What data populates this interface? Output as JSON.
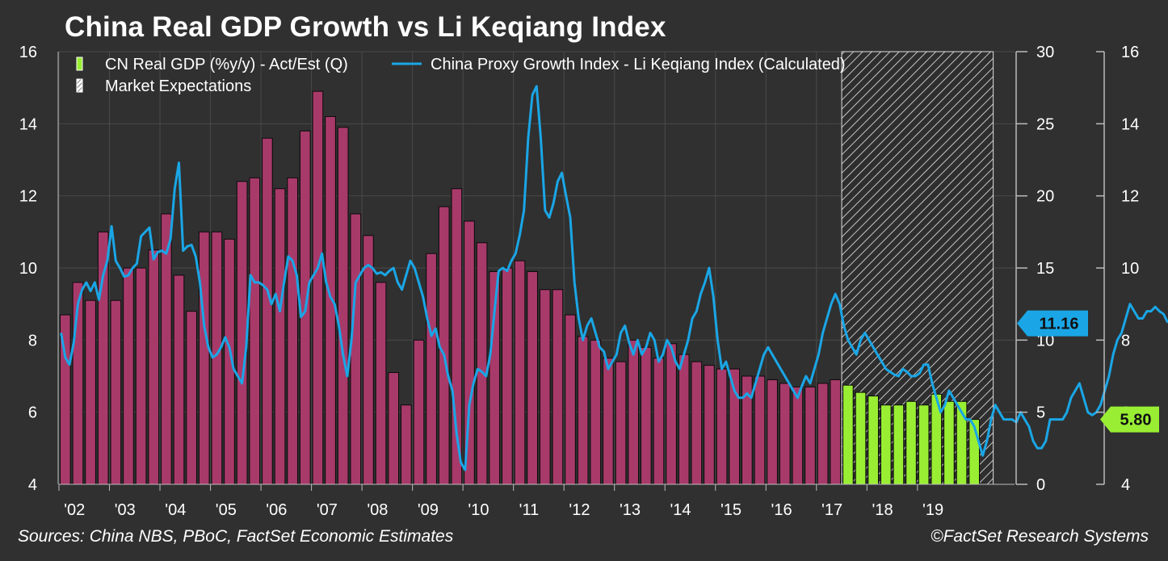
{
  "title": "China Real GDP Growth vs Li Keqiang Index",
  "footer": {
    "sources": "Sources: China NBS, PBoC, FactSet Economic Estimates",
    "copyright": "©FactSet Research Systems"
  },
  "colors": {
    "background": "#303030",
    "gdp_actual": "#a83a6a",
    "gdp_estimate": "#99ee33",
    "line": "#1aa6e6",
    "hatch": "#bbbbbb",
    "grid": "#4a4a4a"
  },
  "chart_data": {
    "type": "bar+line",
    "title": "China Real GDP Growth vs Li Keqiang Index",
    "xlabel": "",
    "x_tick_labels": [
      "'02",
      "'03",
      "'04",
      "'05",
      "'06",
      "'07",
      "'08",
      "'09",
      "'10",
      "'11",
      "'12",
      "'13",
      "'14",
      "'15",
      "'16",
      "'17",
      "'18",
      "'19"
    ],
    "left_axis": {
      "ylim": [
        4,
        16
      ],
      "ticks": [
        4,
        6,
        8,
        10,
        12,
        14,
        16
      ]
    },
    "right_axis_inner": {
      "ylim": [
        0,
        30
      ],
      "ticks": [
        0,
        5,
        10,
        15,
        20,
        25,
        30
      ]
    },
    "right_axis_outer": {
      "ylim": [
        4,
        16
      ],
      "ticks": [
        4,
        6,
        8,
        10,
        12,
        14,
        16
      ]
    },
    "legend": [
      {
        "label": "CN Real GDP (%y/y) - Act/Est (Q)",
        "kind": "bar"
      },
      {
        "label": "China Proxy Growth Index - Li Keqiang Index (Calculated)",
        "kind": "line"
      },
      {
        "label": "Market Expectations",
        "kind": "hatch"
      }
    ],
    "gdp_actual": {
      "name": "CN Real GDP (%y/y) - Act",
      "start_quarter": "2002Q1",
      "values": [
        8.7,
        9.6,
        9.1,
        11.0,
        9.1,
        10.0,
        10.0,
        10.5,
        11.5,
        9.8,
        8.8,
        11.0,
        11.0,
        10.8,
        12.4,
        12.5,
        13.6,
        12.2,
        12.5,
        13.8,
        14.9,
        14.2,
        13.9,
        11.5,
        10.9,
        9.6,
        7.1,
        6.2,
        8.0,
        10.4,
        11.7,
        12.2,
        11.3,
        10.7,
        9.9,
        10.0,
        10.2,
        9.9,
        9.4,
        9.4,
        8.7,
        8.1,
        8.0,
        7.5,
        7.4,
        8.0,
        7.8,
        7.5,
        7.9,
        7.6,
        7.4,
        7.3,
        7.2,
        7.2,
        7.0,
        7.0,
        6.9,
        6.8,
        6.7,
        6.7,
        6.8,
        6.9
      ]
    },
    "gdp_estimate": {
      "name": "CN Real GDP (%y/y) - Est",
      "start_quarter": "2017Q2",
      "values": [
        6.75,
        6.55,
        6.45,
        6.2,
        6.2,
        6.3,
        6.2,
        6.5,
        6.3,
        6.3,
        5.8
      ]
    },
    "market_expectations": {
      "from": "2017Q2",
      "to": "2019Q4"
    },
    "li_keqiang_index": {
      "name": "China Proxy Growth Index - Li Keqiang Index (Calculated)",
      "axis": "right_axis_inner",
      "start_month": "2002-01",
      "values": [
        10.5,
        8.8,
        8.3,
        9.8,
        12.5,
        13.5,
        14.0,
        13.4,
        14.0,
        12.8,
        14.5,
        15.5,
        17.9,
        15.5,
        15.0,
        14.4,
        14.5,
        15.0,
        15.3,
        17.2,
        17.5,
        17.8,
        15.6,
        16.1,
        16.2,
        16.0,
        17.0,
        20.5,
        22.3,
        16.2,
        16.5,
        16.6,
        15.8,
        14.0,
        11.0,
        9.5,
        8.8,
        9.0,
        9.5,
        10.2,
        9.5,
        8.0,
        7.5,
        7.0,
        9.5,
        14.5,
        14.0,
        14.0,
        13.8,
        13.5,
        12.5,
        13.2,
        12.0,
        14.0,
        15.8,
        15.5,
        14.5,
        11.6,
        12.0,
        14.0,
        14.5,
        15.0,
        16.0,
        14.0,
        13.0,
        12.5,
        11.0,
        9.0,
        7.5,
        10.0,
        14.0,
        14.5,
        15.0,
        15.2,
        15.0,
        14.6,
        14.7,
        14.5,
        14.8,
        15.0,
        14.0,
        13.5,
        14.5,
        15.5,
        15.0,
        14.0,
        13.0,
        11.5,
        10.3,
        10.8,
        9.5,
        9.0,
        7.5,
        6.5,
        3.5,
        1.5,
        1.0,
        5.5,
        7.0,
        8.0,
        7.8,
        7.5,
        9.0,
        12.0,
        14.8,
        15.0,
        14.8,
        15.5,
        16.0,
        17.3,
        19.0,
        24.0,
        27.0,
        27.6,
        24.0,
        19.0,
        18.5,
        19.5,
        21.0,
        21.6,
        20.0,
        18.5,
        14.0,
        11.5,
        10.0,
        11.0,
        11.5,
        10.5,
        9.5,
        9.2,
        8.0,
        8.5,
        9.0,
        10.5,
        11.0,
        9.8,
        9.0,
        10.0,
        9.0,
        9.5,
        10.5,
        10.0,
        8.5,
        9.0,
        10.0,
        9.5,
        8.5,
        8.0,
        9.0,
        10.0,
        11.5,
        12.0,
        13.2,
        14.0,
        15.0,
        13.0,
        10.0,
        8.0,
        8.5,
        7.5,
        6.5,
        6.0,
        6.0,
        6.3,
        6.0,
        7.0,
        8.0,
        9.0,
        9.5,
        9.0,
        8.5,
        8.0,
        7.5,
        7.0,
        6.5,
        6.0,
        6.8,
        7.5,
        7.0,
        8.0,
        9.0,
        10.5,
        11.5,
        12.5,
        13.2,
        12.5,
        11.0,
        10.0,
        9.5,
        9.0,
        10.0,
        10.5,
        10.0,
        9.5,
        9.0,
        8.5,
        8.0,
        7.8,
        7.6,
        7.5,
        8.0,
        7.8,
        7.5,
        7.5,
        7.7,
        8.3,
        8.3,
        7.0,
        6.0,
        5.0,
        5.5,
        6.5,
        6.0,
        5.5,
        5.0,
        4.5,
        4.5,
        4.0,
        3.0,
        2.0,
        3.0,
        4.5,
        5.5,
        5.0,
        4.5,
        4.5,
        4.5,
        4.3,
        5.0,
        4.5,
        4.0,
        3.0,
        2.5,
        2.5,
        3.0,
        4.5,
        4.5,
        4.5,
        4.5,
        5.0,
        6.0,
        6.5,
        7.0,
        6.0,
        5.0,
        4.8,
        5.0,
        5.5,
        6.5,
        7.5,
        9.0,
        10.0,
        10.5,
        11.5,
        12.5,
        12.0,
        11.5,
        11.5,
        12.0,
        12.0,
        12.3,
        12.0,
        11.8,
        11.2
      ]
    },
    "last_values": {
      "li_keqiang_index": "11.16",
      "gdp": "5.80"
    }
  }
}
